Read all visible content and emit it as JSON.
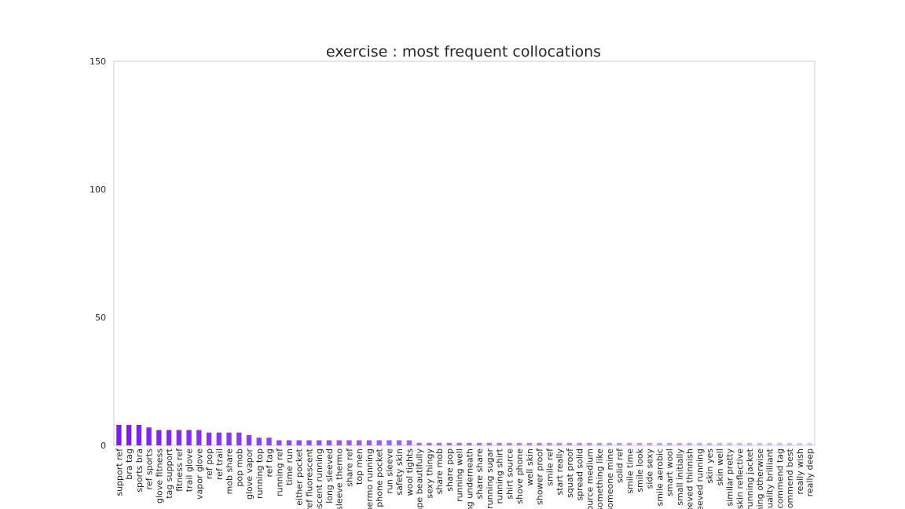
{
  "chart_data": {
    "type": "bar",
    "title": "exercise : most frequent collocations",
    "xlabel": "",
    "ylabel": "",
    "ylim": [
      0,
      150
    ],
    "yticks": [
      0,
      50,
      100,
      150
    ],
    "grid": false,
    "legend": "none",
    "colors": {
      "start": "#7a1cf6",
      "end": "#d4c7f6",
      "frame": "#cccccc"
    },
    "categories": [
      "support ref",
      "bra tag",
      "sports bra",
      "ref sports",
      "glove fitness",
      "tag support",
      "fitness ref",
      "trail glove",
      "vapor glove",
      "ref pop",
      "ref trail",
      "mob share",
      "pop mob",
      "glove vapor",
      "running top",
      "ref tag",
      "running ref",
      "time run",
      "either pocket",
      "ref fluorescent",
      "escent running",
      "long sleeved",
      "sleeve thermo",
      "share ref",
      "top men",
      "hermo running",
      "phone pocket",
      "run sleeve",
      "safety skin",
      "wool tights",
      "ape beautifully",
      "sexy thingy",
      "share mob",
      "share pop",
      "running well",
      "ng underneath",
      "share share",
      "running sugar",
      "running shirt",
      "shirt source",
      "shove phone",
      "well skin",
      "shower proof",
      "smile ref",
      "start really",
      "squat proof",
      "spread solid",
      "ource medium",
      "something like",
      "someone mine",
      "solid ref",
      "smile time",
      "smile look",
      "side sexy",
      "smile aerobic",
      "smart wool",
      "small initially",
      "eeved thinnish",
      "eeved running",
      "skin yes",
      "skin well",
      "similar pretty",
      "skin reflective",
      "running jacket",
      "ning otherwise",
      "quality brilliant",
      "ecommend tag",
      "commend best",
      "really wish",
      "really deep"
    ],
    "values": [
      8,
      8,
      8,
      7,
      6,
      6,
      6,
      6,
      6,
      5,
      5,
      5,
      5,
      4,
      3,
      3,
      2,
      2,
      2,
      2,
      2,
      2,
      2,
      2,
      2,
      2,
      2,
      2,
      2,
      2,
      1,
      1,
      1,
      1,
      1,
      1,
      1,
      1,
      1,
      1,
      1,
      1,
      1,
      1,
      1,
      1,
      1,
      1,
      1,
      1,
      1,
      1,
      1,
      1,
      1,
      1,
      1,
      1,
      1,
      1,
      1,
      1,
      1,
      1,
      1,
      1,
      1,
      1,
      1,
      1
    ]
  }
}
